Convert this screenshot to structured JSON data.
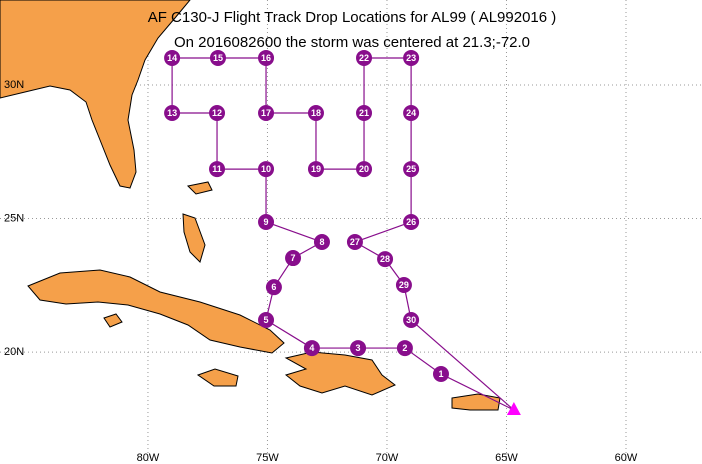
{
  "chart_data": {
    "type": "map",
    "title": "AF C130-J Flight Track Drop Locations for AL99 ( AL992016 )",
    "subtitle": "On 2016082600 the storm was centered at 21.3;-72.0",
    "xlim": [
      -86.19,
      -56.82
    ],
    "ylim": [
      15.81,
      33.18
    ],
    "xticks": [
      {
        "value": -80,
        "label": "80W"
      },
      {
        "value": -75,
        "label": "75W"
      },
      {
        "value": -70,
        "label": "70W"
      },
      {
        "value": -65,
        "label": "65W"
      },
      {
        "value": -60,
        "label": "60W"
      }
    ],
    "yticks": [
      {
        "value": 20,
        "label": "20N"
      },
      {
        "value": 25,
        "label": "25N"
      },
      {
        "value": 30,
        "label": "30N"
      }
    ],
    "grid": true,
    "color": "#880e8c",
    "points": [
      {
        "label": "1",
        "lon": -67.74,
        "lat": 19.18
      },
      {
        "label": "2",
        "lon": -69.25,
        "lat": 20.15
      },
      {
        "label": "3",
        "lon": -71.21,
        "lat": 20.15
      },
      {
        "label": "4",
        "lon": -73.14,
        "lat": 20.15
      },
      {
        "label": "5",
        "lon": -75.06,
        "lat": 21.2
      },
      {
        "label": "6",
        "lon": -74.73,
        "lat": 22.43
      },
      {
        "label": "7",
        "lon": -73.93,
        "lat": 23.52
      },
      {
        "label": "8",
        "lon": -72.72,
        "lat": 24.12
      },
      {
        "label": "9",
        "lon": -75.06,
        "lat": 24.87
      },
      {
        "label": "10",
        "lon": -75.06,
        "lat": 26.85
      },
      {
        "label": "11",
        "lon": -77.11,
        "lat": 26.85
      },
      {
        "label": "12",
        "lon": -77.11,
        "lat": 28.95
      },
      {
        "label": "13",
        "lon": -78.99,
        "lat": 28.95
      },
      {
        "label": "14",
        "lon": -78.99,
        "lat": 31.01
      },
      {
        "label": "15",
        "lon": -77.07,
        "lat": 31.01
      },
      {
        "label": "16",
        "lon": -75.06,
        "lat": 31.01
      },
      {
        "label": "17",
        "lon": -75.06,
        "lat": 28.95
      },
      {
        "label": "18",
        "lon": -72.97,
        "lat": 28.95
      },
      {
        "label": "19",
        "lon": -72.97,
        "lat": 26.85
      },
      {
        "label": "20",
        "lon": -70.96,
        "lat": 26.85
      },
      {
        "label": "21",
        "lon": -70.96,
        "lat": 28.95
      },
      {
        "label": "22",
        "lon": -70.96,
        "lat": 31.01
      },
      {
        "label": "23",
        "lon": -68.99,
        "lat": 31.01
      },
      {
        "label": "24",
        "lon": -68.99,
        "lat": 28.95
      },
      {
        "label": "25",
        "lon": -68.99,
        "lat": 26.85
      },
      {
        "label": "26",
        "lon": -68.99,
        "lat": 24.87
      },
      {
        "label": "27",
        "lon": -71.34,
        "lat": 24.12
      },
      {
        "label": "28",
        "lon": -70.08,
        "lat": 23.48
      },
      {
        "label": "29",
        "lon": -69.29,
        "lat": 22.51
      },
      {
        "label": "30",
        "lon": -68.99,
        "lat": 21.2
      }
    ],
    "base": {
      "lon": -64.69,
      "lat": 17.83,
      "color": "#ff00ff"
    }
  }
}
